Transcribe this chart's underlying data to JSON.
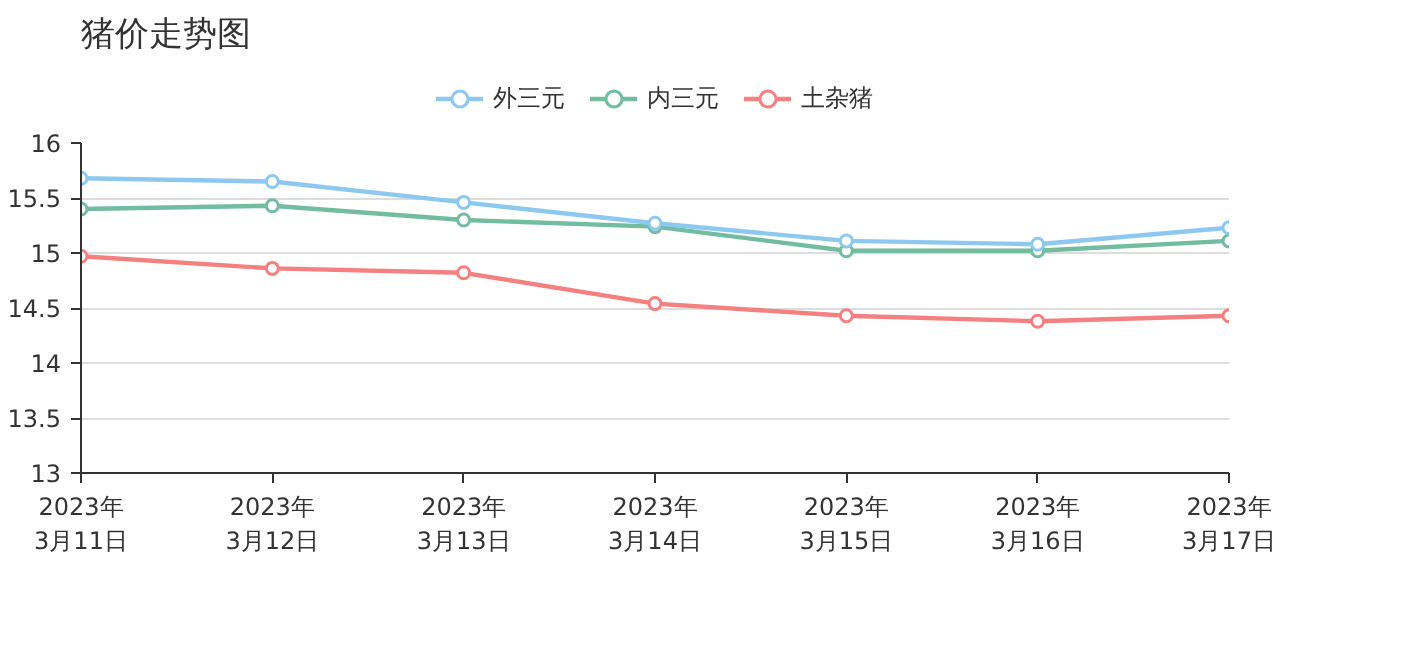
{
  "chart_data": {
    "type": "line",
    "title": "猪价走势图",
    "categories": [
      "2023年\n3月11日",
      "2023年\n3月12日",
      "2023年\n3月13日",
      "2023年\n3月14日",
      "2023年\n3月15日",
      "2023年\n3月16日",
      "2023年\n3月17日"
    ],
    "series": [
      {
        "name": "外三元",
        "color": "#8cc8f0",
        "values": [
          15.68,
          15.65,
          15.46,
          15.27,
          15.11,
          15.08,
          15.23
        ]
      },
      {
        "name": "内三元",
        "color": "#72bca0",
        "values": [
          15.4,
          15.43,
          15.3,
          15.24,
          15.02,
          15.02,
          15.11
        ]
      },
      {
        "name": "土杂猪",
        "color": "#f58080",
        "values": [
          14.97,
          14.86,
          14.82,
          14.54,
          14.43,
          14.38,
          14.43
        ]
      }
    ],
    "ylim": [
      13,
      16
    ],
    "yticks": [
      13,
      "13.5",
      14,
      "14.5",
      15,
      "15.5",
      16
    ],
    "grid": "y",
    "legend": "top",
    "marker": "circle",
    "line_style": "solid"
  }
}
